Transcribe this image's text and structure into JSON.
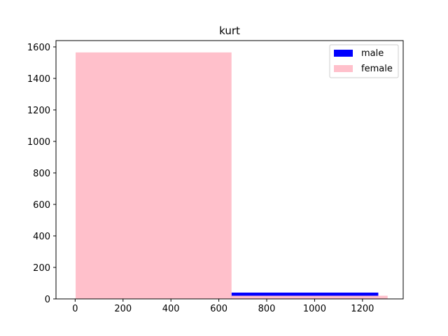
{
  "chart_data": {
    "type": "bar",
    "title": "kurt",
    "xlabel": "",
    "ylabel": "",
    "xlim": [
      -80,
      1370
    ],
    "ylim": [
      0,
      1640
    ],
    "xticks": [
      0,
      200,
      400,
      600,
      800,
      1000,
      1200
    ],
    "yticks": [
      0,
      200,
      400,
      600,
      800,
      1000,
      1200,
      1400,
      1600
    ],
    "legend_position": "top-right",
    "grid": false,
    "series": [
      {
        "name": "male",
        "color": "#0000ff",
        "bins": [
          {
            "x0": 0,
            "x1": 653,
            "value": 0
          },
          {
            "x0": 653,
            "x1": 1266,
            "value": 40
          }
        ]
      },
      {
        "name": "female",
        "color": "#ffc0cb",
        "bins": [
          {
            "x0": 2,
            "x1": 653,
            "value": 1565
          },
          {
            "x0": 653,
            "x1": 1305,
            "value": 20
          }
        ]
      }
    ]
  }
}
